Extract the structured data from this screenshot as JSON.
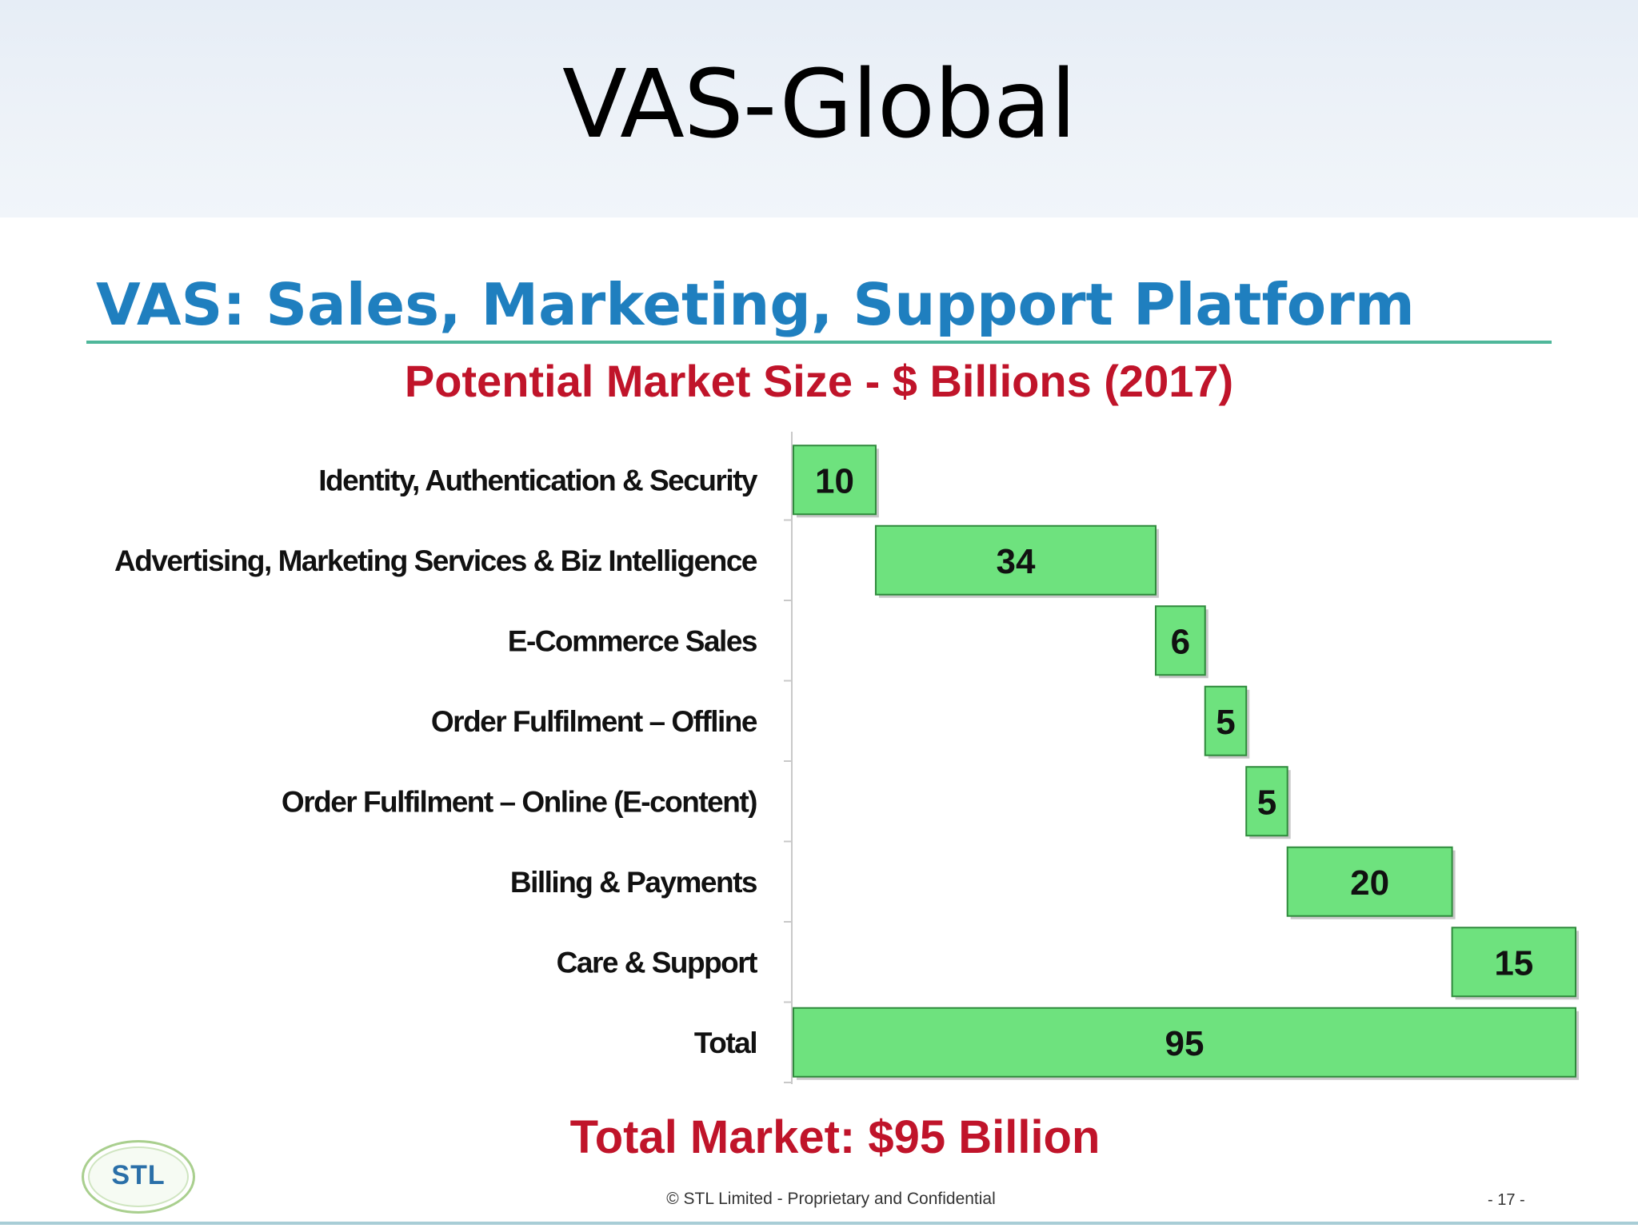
{
  "slide": {
    "title": "VAS-Global"
  },
  "infographic": {
    "heading": "VAS: Sales, Marketing, Support Platform",
    "subheading": "Potential Market Size - $ Billions (2017)",
    "total_banner": "Total Market: $95 Billion",
    "logo_text": "STL",
    "copyright": "© STL Limited  -  Proprietary and Confidential",
    "page_number": "- 17 -"
  },
  "colors": {
    "bar_fill": "#6ee27e",
    "bar_stroke": "#2f8a3c",
    "heading": "#1f7fbf",
    "subheading": "#c0142a",
    "heading_rule": "#4fb79a"
  },
  "chart_data": {
    "type": "bar",
    "orientation": "horizontal",
    "style": "waterfall",
    "title": "Potential Market Size - $ Billions (2017)",
    "categories": [
      "Identity, Authentication & Security",
      "Advertising, Marketing Services & Biz Intelligence",
      "E-Commerce Sales",
      "Order Fulfilment – Offline",
      "Order Fulfilment – Online (E-content)",
      "Billing & Payments",
      "Care & Support",
      "Total"
    ],
    "values": [
      10,
      34,
      6,
      5,
      5,
      20,
      15,
      95
    ],
    "value_labels": [
      "10",
      "34",
      "6",
      "5",
      "5",
      "20",
      "15",
      "95"
    ],
    "xlim": [
      0,
      95
    ],
    "grid": false,
    "legend": "none"
  }
}
